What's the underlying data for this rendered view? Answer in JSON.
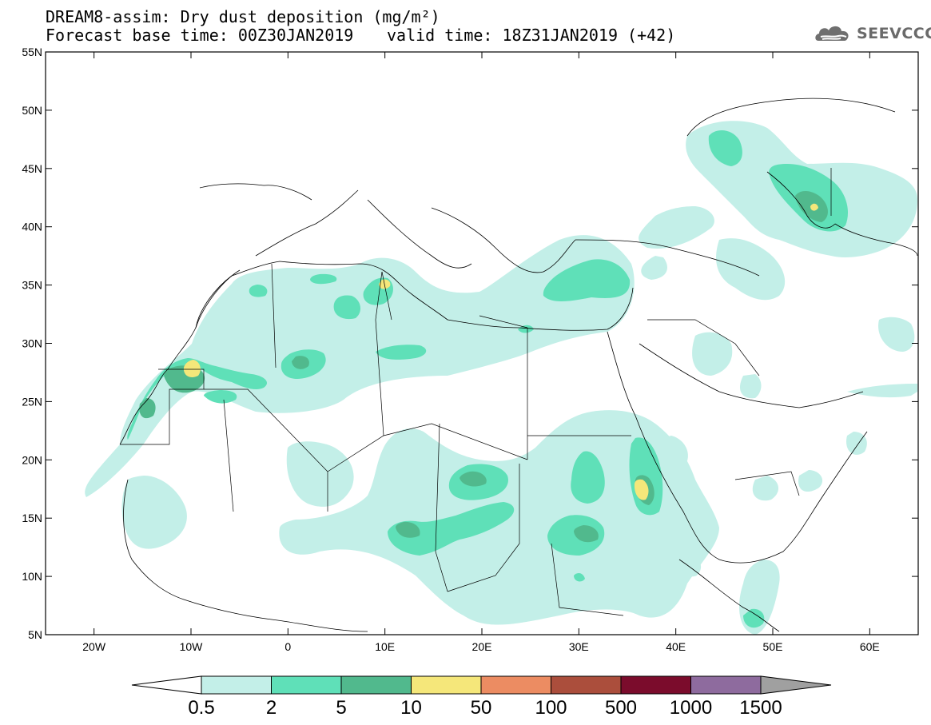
{
  "header": {
    "title": "DREAM8-assim: Dry dust deposition (mg/m²)",
    "base_time": "Forecast base time: 00Z30JAN2019",
    "valid_time": "valid time: 18Z31JAN2019 (+42)"
  },
  "logo": {
    "text": "SEEVCCC",
    "icon": "cloud-logo-icon"
  },
  "map": {
    "lat_labels": [
      "55N",
      "50N",
      "45N",
      "40N",
      "35N",
      "30N",
      "25N",
      "20N",
      "15N",
      "10N",
      "5N"
    ],
    "lon_labels": [
      "20W",
      "10W",
      "0",
      "10E",
      "20E",
      "30E",
      "40E",
      "50E",
      "60E"
    ],
    "lon_range": [
      -25,
      65
    ],
    "lat_range": [
      5,
      55
    ]
  },
  "colorbar": {
    "labels": [
      "0.5",
      "2",
      "5",
      "10",
      "50",
      "100",
      "500",
      "1000",
      "1500"
    ],
    "colors": [
      "#c3efe8",
      "#5fe0b8",
      "#51b98d",
      "#f5e77a",
      "#ec8c62",
      "#ab4e3c",
      "#7b0c2c",
      "#8e6b9e"
    ],
    "under_color": "#ffffff",
    "over_color": "#a0a0a0"
  },
  "colors": {
    "level1": "#c3efe8",
    "level2": "#5fe0b8",
    "level3": "#51b98d",
    "level4": "#f5e77a"
  }
}
